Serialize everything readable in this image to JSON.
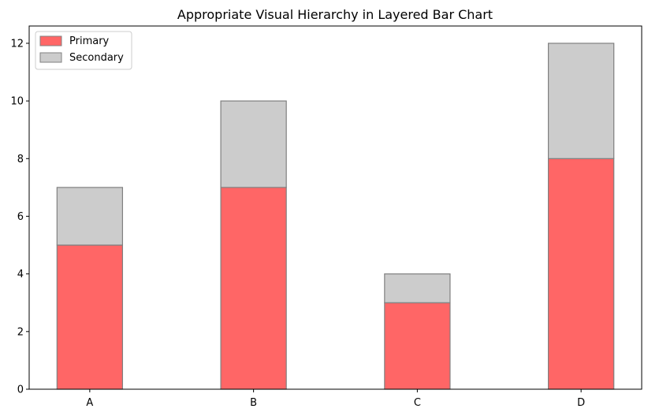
{
  "chart_data": {
    "type": "bar",
    "stacked": true,
    "title": "Appropriate Visual Hierarchy in Layered Bar Chart",
    "xlabel": "",
    "ylabel": "",
    "categories": [
      "A",
      "B",
      "C",
      "D"
    ],
    "series": [
      {
        "name": "Primary",
        "values": [
          5,
          7,
          3,
          8
        ],
        "color": "#ff6666"
      },
      {
        "name": "Secondary",
        "values": [
          2,
          3,
          1,
          4
        ],
        "color": "#cccccc"
      }
    ],
    "ylim": [
      0,
      12.6
    ],
    "yticks": [
      0,
      2,
      4,
      6,
      8,
      10,
      12
    ],
    "grid": false,
    "legend_position": "top-left",
    "edge_color": "#808080"
  }
}
